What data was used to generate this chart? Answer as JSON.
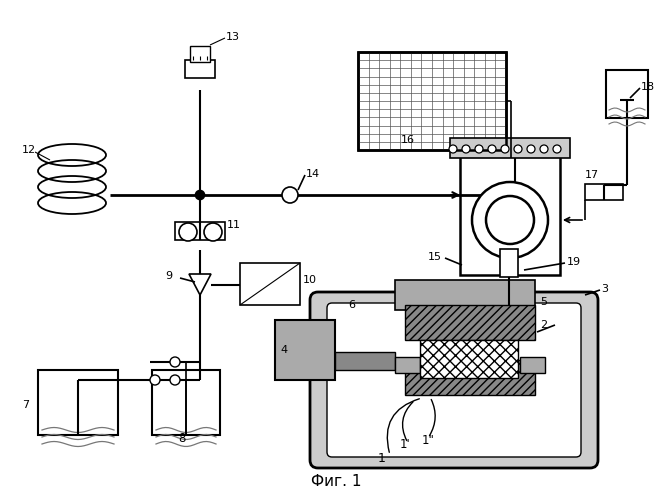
{
  "title": "Фиг. 1",
  "bg_color": "#ffffff",
  "lc": "#000000",
  "gray1": "#aaaaaa",
  "gray2": "#888888",
  "gray3": "#cccccc",
  "gray4": "#666666"
}
